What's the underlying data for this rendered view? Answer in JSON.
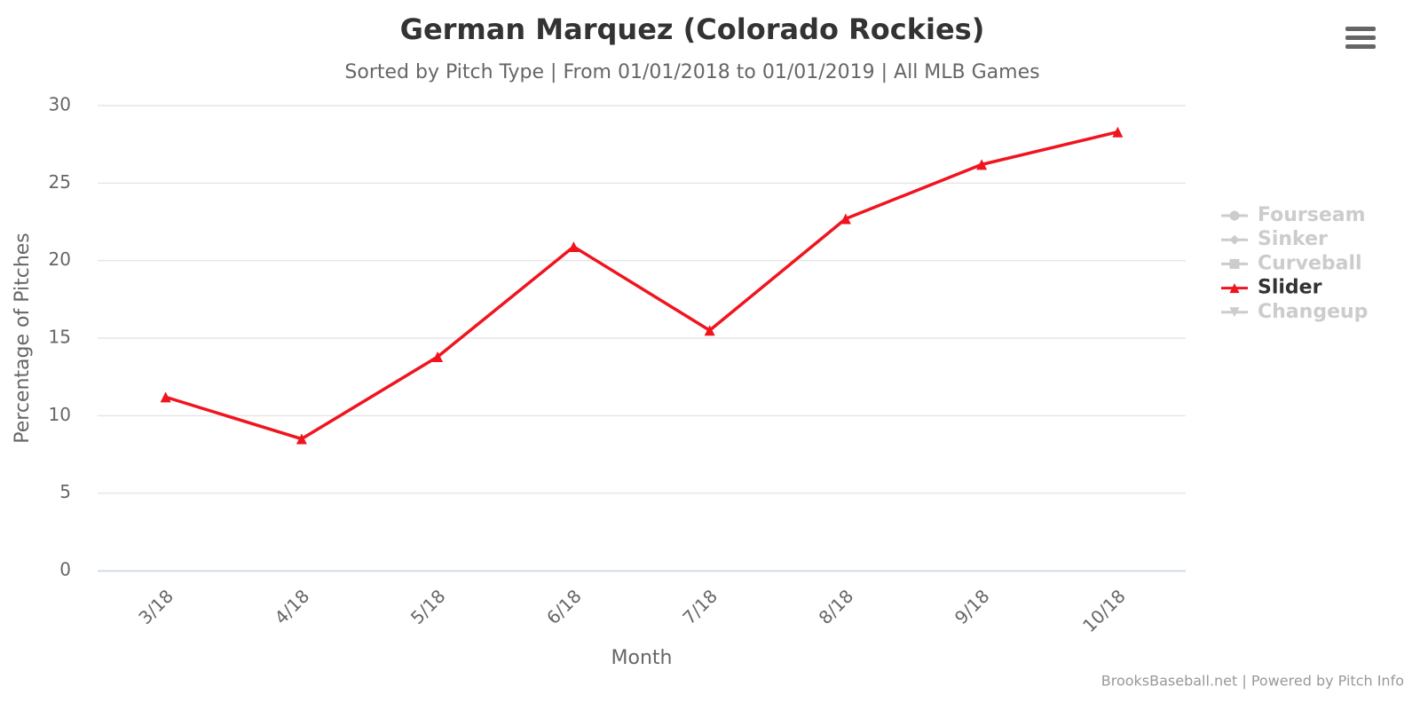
{
  "chart_data": {
    "type": "line",
    "title": "German Marquez (Colorado Rockies)",
    "subtitle": "Sorted by Pitch Type | From 01/01/2018 to 01/01/2019 | All MLB Games",
    "x_label": "Month",
    "y_label": "Percentage of Pitches",
    "credits": "BrooksBaseball.net | Powered by Pitch Info",
    "categories": [
      "3/18",
      "4/18",
      "5/18",
      "6/18",
      "7/18",
      "8/18",
      "9/18",
      "10/18"
    ],
    "ylim": [
      0,
      30
    ],
    "yticks": [
      0,
      5,
      10,
      15,
      20,
      25,
      30
    ],
    "grid": true,
    "legend": "right",
    "series": [
      {
        "name": "Fourseam",
        "color": "#cccccc",
        "marker": "circle",
        "visible": false
      },
      {
        "name": "Sinker",
        "color": "#cccccc",
        "marker": "diamond",
        "visible": false
      },
      {
        "name": "Curveball",
        "color": "#cccccc",
        "marker": "square",
        "visible": false
      },
      {
        "name": "Slider",
        "color": "#f0141e",
        "marker": "triangle",
        "visible": true,
        "values": [
          11.2,
          8.5,
          13.8,
          20.9,
          15.5,
          22.7,
          26.2,
          28.3
        ]
      },
      {
        "name": "Changeup",
        "color": "#cccccc",
        "marker": "triangle-down",
        "visible": false
      }
    ]
  }
}
